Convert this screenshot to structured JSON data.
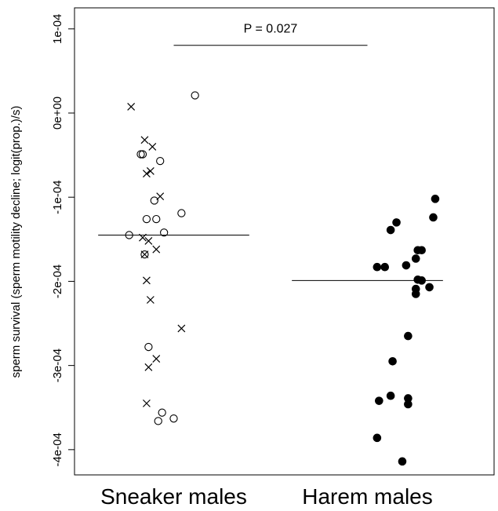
{
  "chart_data": {
    "type": "scatter",
    "title": "",
    "xlabel": "",
    "ylabel": "sperm survival (sperm motility decline; logit(prop.)/s)",
    "categories": [
      "Sneaker males",
      "Harem males"
    ],
    "ylim": [
      -0.00043,
      0.000125
    ],
    "y_ticks": [
      0.0001,
      0,
      -0.0001,
      -0.0002,
      -0.0003,
      -0.0004
    ],
    "y_tick_labels": [
      "1e-04",
      "0e+00",
      "-1e-04",
      "-2e-04",
      "-3e-04",
      "-4e-04"
    ],
    "grid": false,
    "legend": "none",
    "series": [
      {
        "category": "Sneaker males",
        "marker": "cross",
        "points": [
          {
            "x": 0.78,
            "y": 7.5e-06
          },
          {
            "x": 0.85,
            "y": -3.2e-05
          },
          {
            "x": 0.89,
            "y": -4e-05
          },
          {
            "x": 0.88,
            "y": -6.9e-05
          },
          {
            "x": 0.86,
            "y": -7.2e-05
          },
          {
            "x": 0.93,
            "y": -9.9e-05
          },
          {
            "x": 0.84,
            "y": -0.000148
          },
          {
            "x": 0.87,
            "y": -0.000152
          },
          {
            "x": 0.91,
            "y": -0.000162
          },
          {
            "x": 0.85,
            "y": -0.000168
          },
          {
            "x": 0.86,
            "y": -0.000199
          },
          {
            "x": 0.88,
            "y": -0.000222
          },
          {
            "x": 1.04,
            "y": -0.000256
          },
          {
            "x": 0.91,
            "y": -0.000292
          },
          {
            "x": 0.87,
            "y": -0.000302
          },
          {
            "x": 0.86,
            "y": -0.000345
          }
        ]
      },
      {
        "category": "Sneaker males",
        "marker": "open-circle",
        "points": [
          {
            "x": 1.11,
            "y": 2.1e-05
          },
          {
            "x": 0.84,
            "y": -4.9e-05
          },
          {
            "x": 0.83,
            "y": -4.9e-05
          },
          {
            "x": 0.93,
            "y": -5.7e-05
          },
          {
            "x": 0.9,
            "y": -0.000104
          },
          {
            "x": 1.04,
            "y": -0.000119
          },
          {
            "x": 0.86,
            "y": -0.000126
          },
          {
            "x": 0.91,
            "y": -0.000126
          },
          {
            "x": 0.95,
            "y": -0.000142
          },
          {
            "x": 0.77,
            "y": -0.000145
          },
          {
            "x": 0.85,
            "y": -0.000168
          },
          {
            "x": 0.87,
            "y": -0.000278
          },
          {
            "x": 0.94,
            "y": -0.000356
          },
          {
            "x": 1.0,
            "y": -0.000363
          },
          {
            "x": 0.92,
            "y": -0.000366
          }
        ]
      },
      {
        "category": "Harem males",
        "marker": "filled-circle",
        "points": [
          {
            "x": 2.35,
            "y": -0.000102
          },
          {
            "x": 2.34,
            "y": -0.000124
          },
          {
            "x": 2.15,
            "y": -0.00013
          },
          {
            "x": 2.12,
            "y": -0.000139
          },
          {
            "x": 2.26,
            "y": -0.000163
          },
          {
            "x": 2.28,
            "y": -0.000163
          },
          {
            "x": 2.25,
            "y": -0.000173
          },
          {
            "x": 2.2,
            "y": -0.000181
          },
          {
            "x": 2.05,
            "y": -0.000183
          },
          {
            "x": 2.09,
            "y": -0.000183
          },
          {
            "x": 2.26,
            "y": -0.000198
          },
          {
            "x": 2.28,
            "y": -0.000199
          },
          {
            "x": 2.32,
            "y": -0.000207
          },
          {
            "x": 2.25,
            "y": -0.000209
          },
          {
            "x": 2.25,
            "y": -0.000215
          },
          {
            "x": 2.21,
            "y": -0.000265
          },
          {
            "x": 2.13,
            "y": -0.000295
          },
          {
            "x": 2.12,
            "y": -0.000336
          },
          {
            "x": 2.21,
            "y": -0.000339
          },
          {
            "x": 2.06,
            "y": -0.000342
          },
          {
            "x": 2.21,
            "y": -0.000346
          },
          {
            "x": 2.05,
            "y": -0.000386
          },
          {
            "x": 2.18,
            "y": -0.000414
          }
        ]
      }
    ],
    "group_means": [
      {
        "category": "Sneaker males",
        "value": -0.000145
      },
      {
        "category": "Harem males",
        "value": -0.000199
      }
    ],
    "annotation": {
      "text": "P = 0.027",
      "from": "Sneaker males",
      "to": "Harem males",
      "at": 8.05e-05
    }
  }
}
